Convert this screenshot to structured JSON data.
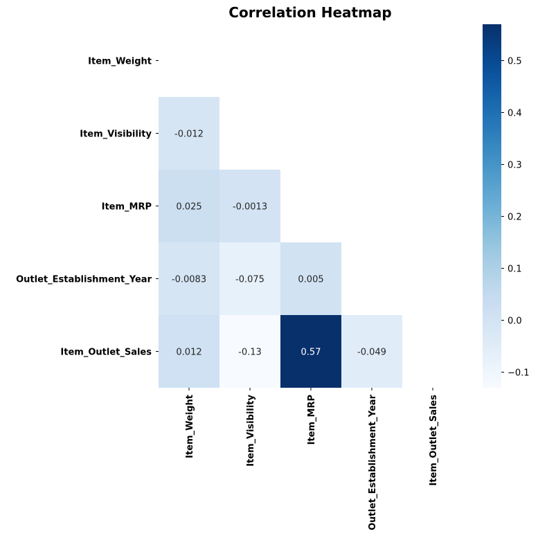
{
  "chart_data": {
    "type": "heatmap",
    "title": "Correlation Heatmap",
    "rows": [
      "Item_Weight",
      "Item_Visibility",
      "Item_MRP",
      "Outlet_Establishment_Year",
      "Item_Outlet_Sales"
    ],
    "columns": [
      "Item_Weight",
      "Item_Visibility",
      "Item_MRP",
      "Outlet_Establishment_Year",
      "Item_Outlet_Sales"
    ],
    "matrix": [
      [
        null,
        null,
        null,
        null,
        null
      ],
      [
        -0.012,
        null,
        null,
        null,
        null
      ],
      [
        0.025,
        -0.0013,
        null,
        null,
        null
      ],
      [
        -0.0083,
        -0.075,
        0.005,
        null,
        null
      ],
      [
        0.012,
        -0.13,
        0.57,
        -0.049,
        null
      ]
    ],
    "annotations": [
      [
        null,
        null,
        null,
        null,
        null
      ],
      [
        "-0.012",
        null,
        null,
        null,
        null
      ],
      [
        "0.025",
        "-0.0013",
        null,
        null,
        null
      ],
      [
        "-0.0083",
        "-0.075",
        "0.005",
        null,
        null
      ],
      [
        "0.012",
        "-0.13",
        "0.57",
        "-0.049",
        null
      ]
    ],
    "colormap": "Blues",
    "colorbar": {
      "range": [
        -0.13,
        0.57
      ],
      "ticks": [
        -0.1,
        0.0,
        0.1,
        0.2,
        0.3,
        0.4,
        0.5
      ],
      "tick_labels": [
        "−0.1",
        "0.0",
        "0.1",
        "0.2",
        "0.3",
        "0.4",
        "0.5"
      ]
    },
    "mask": "upper-triangle-including-diagonal",
    "grid": false
  }
}
